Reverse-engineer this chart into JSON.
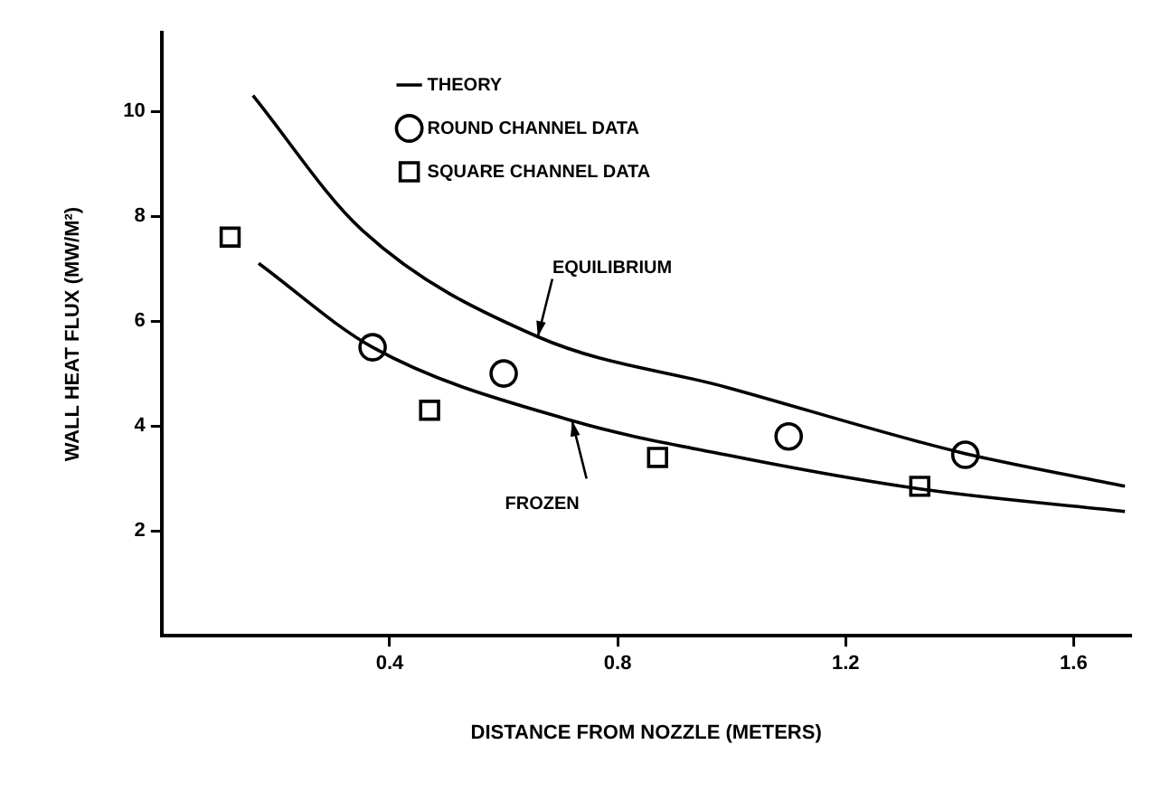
{
  "chart_data": {
    "type": "scatter",
    "xlabel": "DISTANCE FROM NOZZLE (METERS)",
    "ylabel": "WALL HEAT FLUX (MW/M²)",
    "xlim": [
      0,
      1.7
    ],
    "xticks": [
      0.4,
      0.8,
      1.2,
      1.6
    ],
    "ylim": [
      0,
      11.5
    ],
    "yticks": [
      2,
      4,
      6,
      8,
      10
    ],
    "grid": false,
    "legend": "top",
    "series": [
      {
        "name": "THEORY",
        "type": "line",
        "color": "#000000",
        "marker": "none",
        "line_style": "solid",
        "x": [
          0.16,
          0.35,
          0.66,
          0.99,
          1.4,
          1.69
        ],
        "values": [
          10.3,
          7.75,
          5.7,
          4.74,
          3.5,
          2.85
        ]
      },
      {
        "type": "line",
        "color": "#000000",
        "marker": "none",
        "line_style": "solid",
        "x": [
          0.17,
          0.37,
          0.72,
          0.99,
          1.33,
          1.69
        ],
        "values": [
          7.1,
          5.5,
          4.1,
          3.45,
          2.8,
          2.37
        ]
      },
      {
        "name": "ROUND CHANNEL DATA",
        "color": "#000000",
        "marker": "circle",
        "x": [
          0.37,
          0.6,
          1.1,
          1.41
        ],
        "values": [
          5.5,
          5.0,
          3.8,
          3.45
        ]
      },
      {
        "name": "SQUARE CHANNEL DATA",
        "color": "#000000",
        "marker": "square",
        "x": [
          0.12,
          0.47,
          0.87,
          1.33
        ],
        "values": [
          7.6,
          4.3,
          3.4,
          2.85
        ]
      }
    ],
    "annotations": [
      {
        "text": "EQUILIBRIUM",
        "x": 0.66,
        "y": 5.7
      },
      {
        "text": "FROZEN",
        "x": 0.72,
        "y": 4.1
      }
    ]
  }
}
